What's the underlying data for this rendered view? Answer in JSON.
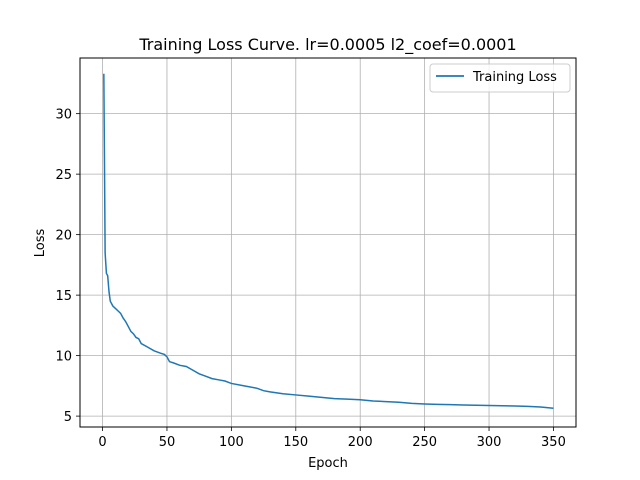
{
  "chart_data": {
    "type": "line",
    "title": "Training Loss Curve. lr=0.0005 l2_coef=0.0001",
    "xlabel": "Epoch",
    "ylabel": "Loss",
    "xlim": [
      -17.5,
      367.5
    ],
    "ylim": [
      4.1,
      34.6
    ],
    "xticks": [
      0,
      50,
      100,
      150,
      200,
      250,
      300,
      350
    ],
    "yticks": [
      5,
      10,
      15,
      20,
      25,
      30
    ],
    "grid": true,
    "legend_position": "top-right",
    "series": [
      {
        "name": "Training Loss",
        "color": "#1f77b4",
        "x": [
          1,
          2,
          3,
          4,
          5,
          6,
          8,
          10,
          12,
          14,
          16,
          18,
          20,
          22,
          24,
          26,
          28,
          30,
          35,
          40,
          45,
          48,
          50,
          52,
          55,
          60,
          65,
          70,
          75,
          80,
          85,
          90,
          95,
          100,
          110,
          120,
          125,
          130,
          140,
          150,
          160,
          170,
          180,
          190,
          200,
          210,
          220,
          230,
          240,
          250,
          260,
          270,
          280,
          290,
          300,
          310,
          320,
          330,
          340,
          350
        ],
        "y": [
          33.3,
          18.5,
          16.8,
          16.6,
          15.3,
          14.5,
          14.1,
          13.9,
          13.7,
          13.5,
          13.1,
          12.8,
          12.4,
          12.0,
          11.8,
          11.5,
          11.4,
          11.0,
          10.7,
          10.4,
          10.2,
          10.1,
          9.9,
          9.5,
          9.4,
          9.2,
          9.1,
          8.8,
          8.5,
          8.3,
          8.1,
          8.0,
          7.9,
          7.7,
          7.5,
          7.3,
          7.1,
          7.0,
          6.85,
          6.75,
          6.65,
          6.55,
          6.45,
          6.4,
          6.35,
          6.25,
          6.2,
          6.15,
          6.05,
          6.0,
          5.97,
          5.95,
          5.92,
          5.9,
          5.88,
          5.86,
          5.84,
          5.8,
          5.75,
          5.65
        ]
      }
    ]
  }
}
